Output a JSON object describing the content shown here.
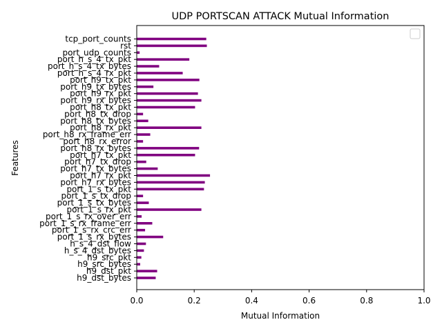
{
  "chart_data": {
    "type": "bar",
    "orientation": "horizontal",
    "title": "UDP PORTSCAN ATTACK Mutual Information",
    "xlabel": "Mutual Information",
    "ylabel": "Features",
    "xlim": [
      0,
      1.0
    ],
    "xticks": [
      "0.0",
      "0.2",
      "0.4",
      "0.6",
      "0.8",
      "1.0"
    ],
    "bar_color": "#800080",
    "grid": false,
    "legend": "top-right (empty)",
    "categories": [
      "tcp_port_counts",
      "rst",
      "port_udp_counts",
      "port_h_s_4_tx_pkt",
      "port_h_s_4_tx_bytes",
      "port_h_s_4_rx_pkt",
      "port_h9_tx_pkt",
      "port_h9_tx_bytes",
      "port_h9_rx_pkt",
      "port_h9_rx_bytes",
      "port_h8_tx_pkt",
      "port_h8_tx_drop",
      "port_h8_tx_bytes",
      "port_h8_rx_pkt",
      "port_h8_rx_frame_err",
      "port_h8_rx_error",
      "port_h8_rx_bytes",
      "port_h7_tx_pkt",
      "port_h7_tx_drop",
      "port_h7_tx_bytes",
      "port_h7_rx_pkt",
      "port_h7_rx_bytes",
      "port_1_s_tx_pkt",
      "port_1_s_tx_drop",
      "port_1_s_tx_bytes",
      "port_1_s_rx_pkt",
      "port_1_s_rx_over_err",
      "port_1_s_rx_frame_err",
      "port_1_s_rx_crc_err",
      "port_1_s_rx_bytes",
      "h_s_4_dst_flow",
      "h_s_4_dst_bytes",
      "h9_src_pkt",
      "h9_src_bytes",
      "h9_dst_pkt",
      "h9_dst_bytes"
    ],
    "values": [
      0.242,
      0.244,
      0.01,
      0.183,
      0.078,
      0.16,
      0.218,
      0.058,
      0.213,
      0.225,
      0.203,
      0.022,
      0.04,
      0.225,
      0.047,
      0.022,
      0.217,
      0.203,
      0.033,
      0.073,
      0.255,
      0.237,
      0.234,
      0.022,
      0.042,
      0.225,
      0.017,
      0.054,
      0.029,
      0.092,
      0.032,
      0.025,
      0.016,
      0.012,
      0.071,
      0.066
    ]
  }
}
